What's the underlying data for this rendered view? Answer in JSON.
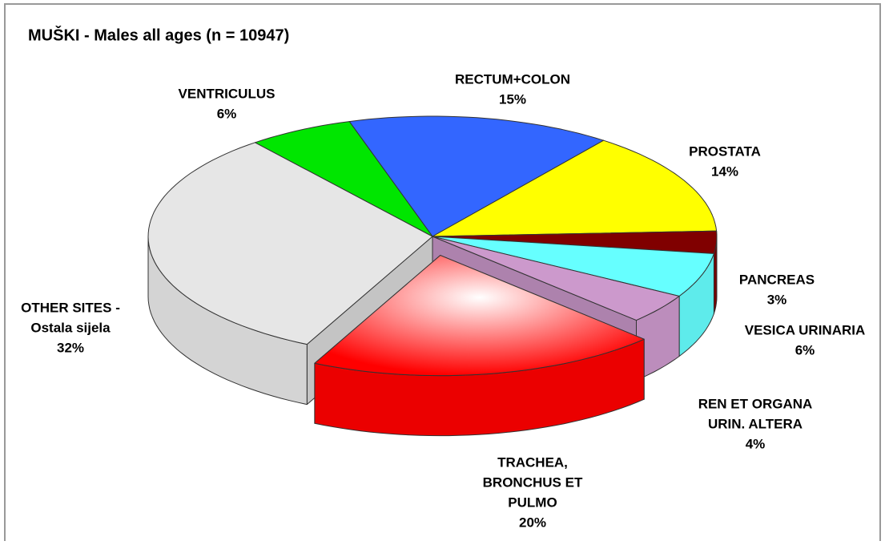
{
  "chart_data": {
    "type": "pie3d",
    "title": "MUŠKI - Males all ages (n = 10947)",
    "categories": [
      [
        "RECTUM+COLON"
      ],
      [
        "PROSTATA"
      ],
      [
        "PANCREAS"
      ],
      [
        "VESICA URINARIA"
      ],
      [
        "REN ET ORGANA",
        "URIN. ALTERA"
      ],
      [
        "TRACHEA,",
        "BRONCHUS ET",
        "PULMO"
      ],
      [
        "OTHER SITES -",
        "Ostala sijela"
      ],
      [
        "VENTRICULUS"
      ]
    ],
    "values": [
      15,
      14,
      3,
      6,
      4,
      20,
      32,
      6
    ],
    "value_labels": [
      "15%",
      "14%",
      "3%",
      "6%",
      "4%",
      "20%",
      "32%",
      "6%"
    ],
    "colors": [
      "#3366ff",
      "#ffff00",
      "#800000",
      "#66ffff",
      "#cc99cc",
      "#ff0000",
      "#e6e6e6",
      "#00e600"
    ],
    "explode": [
      false,
      false,
      false,
      false,
      false,
      true,
      false,
      false
    ]
  }
}
